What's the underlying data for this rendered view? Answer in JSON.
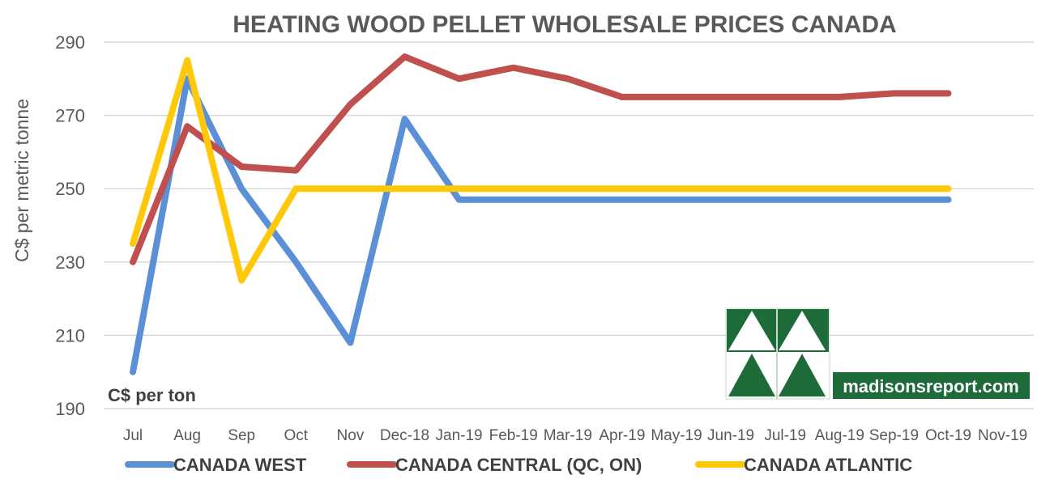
{
  "chart_data": {
    "type": "line",
    "title": "HEATING WOOD PELLET WHOLESALE PRICES CANADA",
    "ylabel": "C$ per metric tonne",
    "xlabel": "",
    "annotation": "C$ per ton",
    "ylim": [
      190,
      290
    ],
    "yticks": [
      190,
      210,
      230,
      250,
      270,
      290
    ],
    "grid": true,
    "legend_position": "bottom",
    "categories": [
      "Jul",
      "Aug",
      "Sep",
      "Oct",
      "Nov",
      "Dec-18",
      "Jan-19",
      "Feb-19",
      "Mar-19",
      "Apr-19",
      "May-19",
      "Jun-19",
      "Jul-19",
      "Aug-19",
      "Sep-19",
      "Oct-19",
      "Nov-19"
    ],
    "series": [
      {
        "name": "CANADA WEST",
        "color": "#5B8FD6",
        "values": [
          200,
          280,
          250,
          230,
          208,
          269,
          247,
          247,
          247,
          247,
          247,
          247,
          247,
          247,
          247,
          247,
          null
        ]
      },
      {
        "name": "CANADA CENTRAL (QC, ON)",
        "color": "#C0504D",
        "values": [
          230,
          267,
          256,
          255,
          273,
          286,
          280,
          283,
          280,
          275,
          275,
          275,
          275,
          275,
          276,
          276,
          null
        ]
      },
      {
        "name": "CANADA ATLANTIC",
        "color": "#FFC809",
        "values": [
          235,
          285,
          225,
          250,
          250,
          250,
          250,
          250,
          250,
          250,
          250,
          250,
          250,
          250,
          250,
          250,
          null
        ]
      }
    ]
  },
  "logo": {
    "text": "madisonsreport.com",
    "icon": "triangle-pattern-logo",
    "color": "#1E6B3A"
  }
}
